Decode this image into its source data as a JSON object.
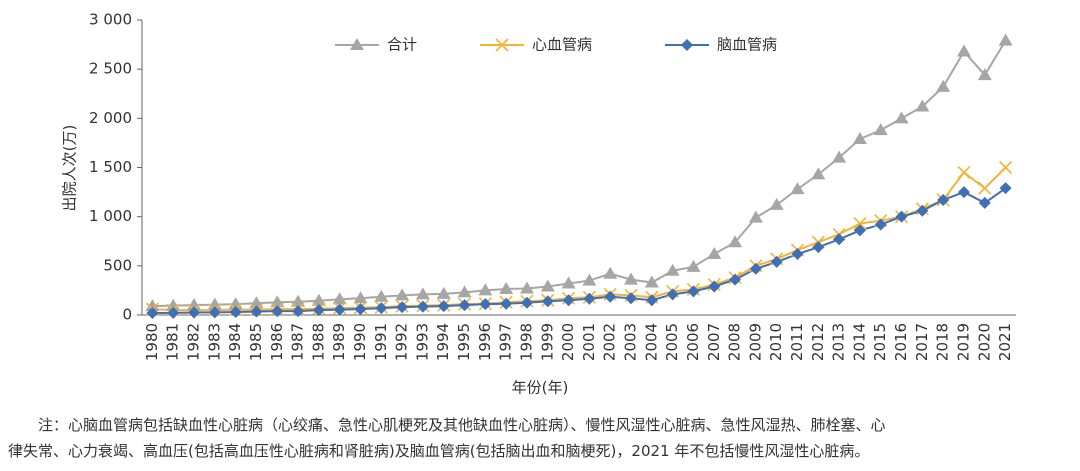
{
  "chart_data": {
    "type": "line",
    "y_label": "出院人次(万)",
    "x_label": "年份(年)",
    "categories": [
      "1980",
      "1981",
      "1982",
      "1983",
      "1984",
      "1985",
      "1986",
      "1987",
      "1988",
      "1989",
      "1990",
      "1991",
      "1992",
      "1993",
      "1994",
      "1995",
      "1996",
      "1997",
      "1998",
      "1999",
      "2000",
      "2001",
      "2002",
      "2003",
      "2004",
      "2005",
      "2006",
      "2007",
      "2008",
      "2009",
      "2010",
      "2011",
      "2012",
      "2013",
      "2014",
      "2015",
      "2016",
      "2017",
      "2018",
      "2019",
      "2020",
      "2021"
    ],
    "series": [
      {
        "name": "合计",
        "color": "#a6a6a6",
        "marker": "triangle",
        "values": [
          90,
          95,
          100,
          105,
          110,
          120,
          130,
          135,
          145,
          160,
          170,
          185,
          200,
          210,
          215,
          230,
          250,
          265,
          270,
          290,
          320,
          350,
          420,
          360,
          330,
          450,
          490,
          620,
          740,
          990,
          1120,
          1280,
          1430,
          1600,
          1790,
          1880,
          2000,
          2120,
          2320,
          2680,
          2440,
          2790
        ]
      },
      {
        "name": "心血管病",
        "color": "#f5b335",
        "marker": "x",
        "values": [
          60,
          50,
          50,
          50,
          55,
          55,
          60,
          60,
          65,
          70,
          75,
          80,
          90,
          95,
          100,
          110,
          115,
          130,
          140,
          150,
          170,
          180,
          210,
          200,
          180,
          240,
          260,
          310,
          380,
          500,
          570,
          660,
          740,
          820,
          930,
          960,
          1000,
          1080,
          1170,
          1450,
          1290,
          1500
        ]
      },
      {
        "name": "脑血管病",
        "color": "#3f6fb5",
        "marker": "diamond",
        "values": [
          20,
          22,
          25,
          27,
          30,
          35,
          40,
          40,
          50,
          55,
          60,
          70,
          80,
          85,
          90,
          100,
          110,
          115,
          125,
          140,
          150,
          165,
          185,
          170,
          150,
          210,
          240,
          290,
          360,
          470,
          540,
          620,
          690,
          770,
          860,
          920,
          1000,
          1060,
          1170,
          1250,
          1140,
          1290
        ]
      }
    ],
    "ylim": [
      0,
      3000
    ],
    "yticks": [
      0,
      500,
      {
        "value": 1000,
        "label": "1 000"
      },
      {
        "value": 1500,
        "label": "1 500"
      },
      {
        "value": 2000,
        "label": "2 000"
      },
      {
        "value": 2500,
        "label": "2 500"
      },
      {
        "value": 3000,
        "label": "3 000"
      }
    ],
    "grid": false,
    "legend": "top",
    "note": [
      "注：心脑血管病包括缺血性心脏病（心绞痛、急性心肌梗死及其他缺血性心脏病）、慢性风湿性心脏病、急性风湿热、肺栓塞、心",
      "律失常、心力衰竭、高血压(包括高血压性心脏病和肾脏病)及脑血管病(包括脑出血和脑梗死)，2021 年不包括慢性风湿性心脏病。"
    ]
  }
}
